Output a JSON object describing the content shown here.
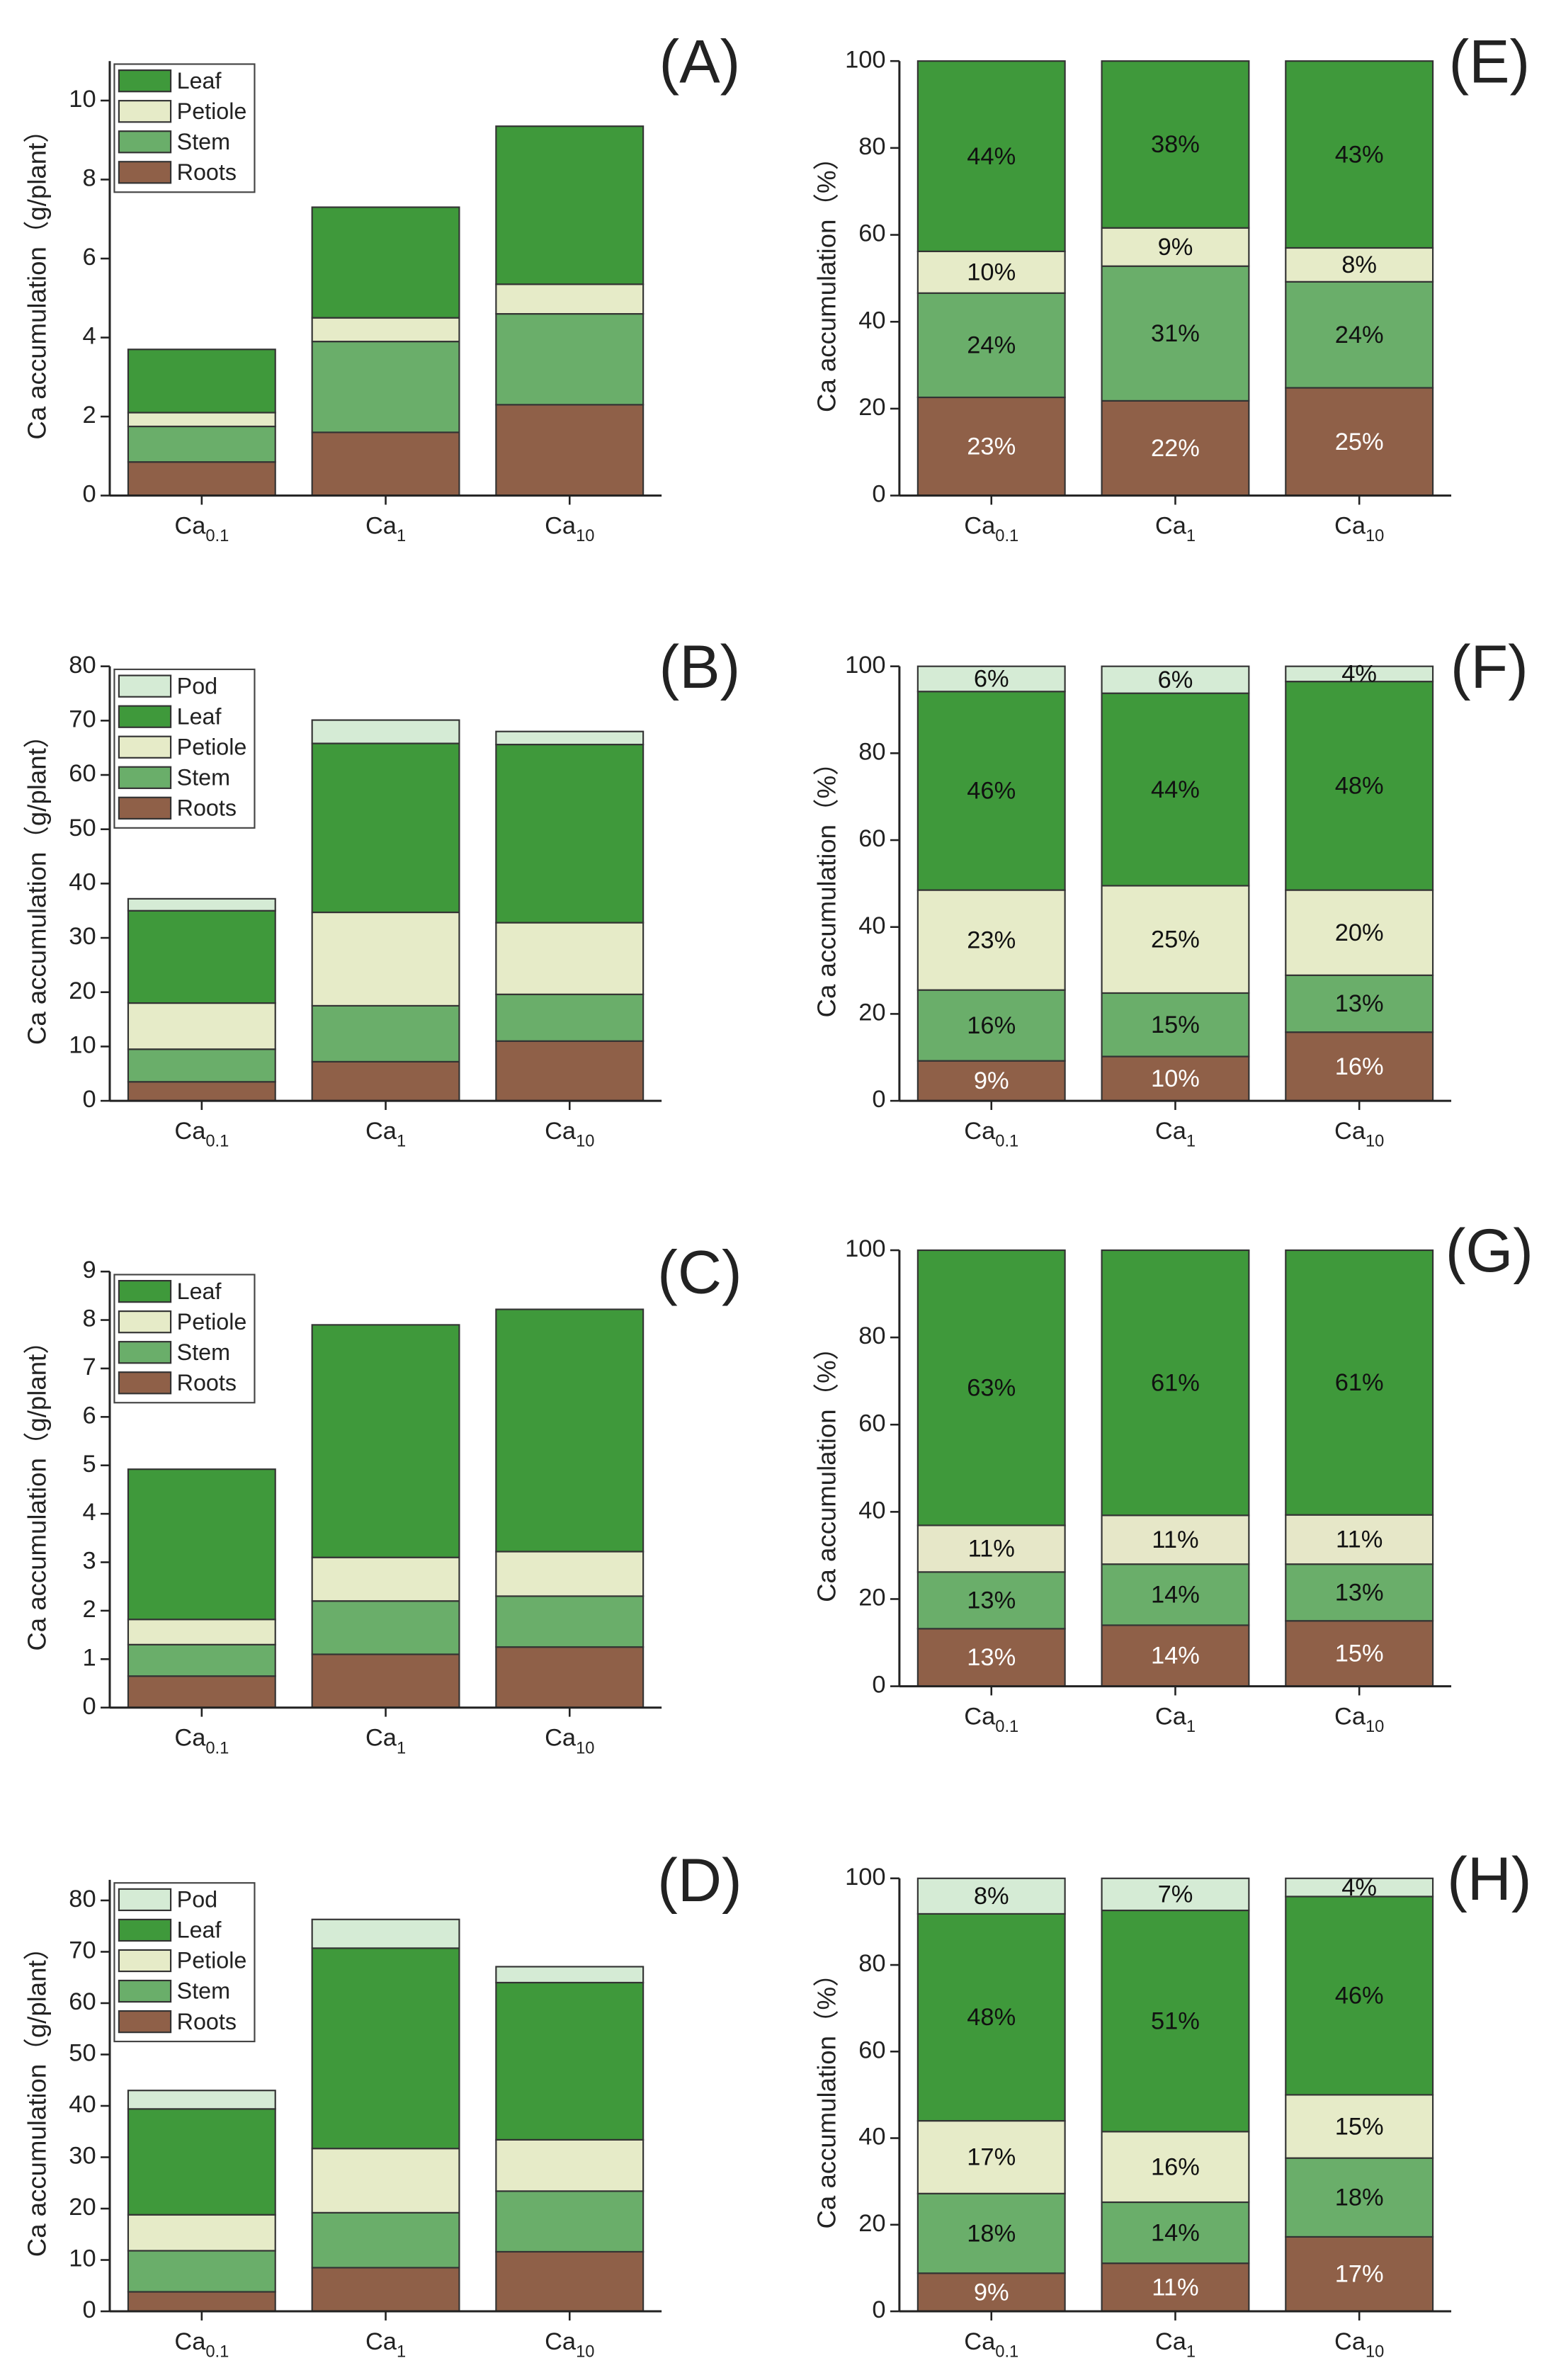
{
  "chart_data": [
    {
      "type": "bar",
      "stacked": true,
      "panel_label": "(A)",
      "y_label": "Ca accumulation（g/plant）",
      "categories": [
        "Ca0.1",
        "Ca1",
        "Ca10"
      ],
      "ylim": [
        0,
        11
      ],
      "yticks": [
        0,
        2,
        4,
        6,
        8,
        10
      ],
      "legend": "upper left",
      "series": [
        {
          "name": "Roots",
          "color": "#8f6048",
          "values": [
            0.85,
            1.6,
            2.3
          ]
        },
        {
          "name": "Stem",
          "color": "#6aae6a",
          "values": [
            0.9,
            2.3,
            2.3
          ]
        },
        {
          "name": "Petiole",
          "color": "#e6ebc8",
          "values": [
            0.35,
            0.6,
            0.75
          ]
        },
        {
          "name": "Leaf",
          "color": "#3f993b",
          "values": [
            1.6,
            2.8,
            4.0
          ]
        }
      ]
    },
    {
      "type": "bar",
      "stacked": true,
      "panel_label": "(E)",
      "y_label": "Ca accumulation（%）",
      "categories": [
        "Ca0.1",
        "Ca1",
        "Ca10"
      ],
      "ylim": [
        0,
        100
      ],
      "yticks": [
        0,
        20,
        40,
        60,
        80,
        100
      ],
      "series": [
        {
          "name": "Roots",
          "color": "#8f6048",
          "label_color": "#ffffff",
          "values": [
            22.6,
            21.8,
            24.8
          ],
          "value_labels": [
            "23%",
            "22%",
            "25%"
          ]
        },
        {
          "name": "Stem",
          "color": "#6aae6a",
          "label_color": "#111111",
          "values": [
            24.0,
            31.0,
            24.4
          ],
          "value_labels": [
            "24%",
            "31%",
            "24%"
          ]
        },
        {
          "name": "Petiole",
          "color": "#e6ebc8",
          "label_color": "#111111",
          "values": [
            9.6,
            8.8,
            7.8
          ],
          "value_labels": [
            "10%",
            "9%",
            "8%"
          ]
        },
        {
          "name": "Leaf",
          "color": "#3f993b",
          "label_color": "#111111",
          "values": [
            43.8,
            38.4,
            43.0
          ],
          "value_labels": [
            "44%",
            "38%",
            "43%"
          ]
        }
      ]
    },
    {
      "type": "bar",
      "stacked": true,
      "panel_label": "(B)",
      "y_label": "Ca accumulation（g/plant）",
      "categories": [
        "Ca0.1",
        "Ca1",
        "Ca10"
      ],
      "ylim": [
        0,
        80
      ],
      "yticks": [
        0,
        10,
        20,
        30,
        40,
        50,
        60,
        70,
        80
      ],
      "legend": "upper left",
      "series": [
        {
          "name": "Roots",
          "color": "#8f6048",
          "values": [
            3.5,
            7.2,
            11.0
          ]
        },
        {
          "name": "Stem",
          "color": "#6aae6a",
          "values": [
            6.0,
            10.3,
            8.6
          ]
        },
        {
          "name": "Petiole",
          "color": "#e6ebc8",
          "values": [
            8.5,
            17.2,
            13.2
          ]
        },
        {
          "name": "Leaf",
          "color": "#3f993b",
          "values": [
            17.0,
            31.1,
            32.8
          ]
        },
        {
          "name": "Pod",
          "color": "#d5ebd5",
          "values": [
            2.2,
            4.3,
            2.4
          ]
        }
      ]
    },
    {
      "type": "bar",
      "stacked": true,
      "panel_label": "(F)",
      "y_label": "Ca accumulation（%）",
      "categories": [
        "Ca0.1",
        "Ca1",
        "Ca10"
      ],
      "ylim": [
        0,
        100
      ],
      "yticks": [
        0,
        20,
        40,
        60,
        80,
        100
      ],
      "series": [
        {
          "name": "Roots",
          "color": "#8f6048",
          "label_color": "#ffffff",
          "values": [
            9.2,
            10.2,
            15.8
          ],
          "value_labels": [
            "9%",
            "10%",
            "16%"
          ]
        },
        {
          "name": "Stem",
          "color": "#6aae6a",
          "label_color": "#111111",
          "values": [
            16.3,
            14.6,
            13.1
          ],
          "value_labels": [
            "16%",
            "15%",
            "13%"
          ]
        },
        {
          "name": "Petiole",
          "color": "#e6ebc8",
          "label_color": "#111111",
          "values": [
            23.0,
            24.7,
            19.6
          ],
          "value_labels": [
            "23%",
            "25%",
            "20%"
          ]
        },
        {
          "name": "Leaf",
          "color": "#3f993b",
          "label_color": "#111111",
          "values": [
            45.7,
            44.3,
            48.0
          ],
          "value_labels": [
            "46%",
            "44%",
            "48%"
          ]
        },
        {
          "name": "Pod",
          "color": "#d5ebd5",
          "label_color": "#111111",
          "values": [
            5.8,
            6.2,
            3.5
          ],
          "value_labels": [
            "6%",
            "6%",
            "4%"
          ]
        }
      ]
    },
    {
      "type": "bar",
      "stacked": true,
      "panel_label": "(C)",
      "y_label": "Ca accumulation（g/plant）",
      "categories": [
        "Ca0.1",
        "Ca1",
        "Ca10"
      ],
      "ylim": [
        0,
        9
      ],
      "yticks": [
        0,
        1,
        2,
        3,
        4,
        5,
        6,
        7,
        8,
        9
      ],
      "legend": "upper left",
      "series": [
        {
          "name": "Roots",
          "color": "#8f6048",
          "values": [
            0.65,
            1.1,
            1.25
          ]
        },
        {
          "name": "Stem",
          "color": "#6aae6a",
          "values": [
            0.65,
            1.1,
            1.05
          ]
        },
        {
          "name": "Petiole",
          "color": "#e6ebc8",
          "values": [
            0.52,
            0.9,
            0.92
          ]
        },
        {
          "name": "Leaf",
          "color": "#3f993b",
          "values": [
            3.1,
            4.8,
            5.0
          ]
        }
      ]
    },
    {
      "type": "bar",
      "stacked": true,
      "panel_label": "(G)",
      "y_label": "Ca accumulation（%）",
      "categories": [
        "Ca0.1",
        "Ca1",
        "Ca10"
      ],
      "ylim": [
        0,
        100
      ],
      "yticks": [
        0,
        20,
        40,
        60,
        80,
        100
      ],
      "series": [
        {
          "name": "Roots",
          "color": "#8f6048",
          "label_color": "#ffffff",
          "values": [
            13.2,
            14.0,
            15.0
          ],
          "value_labels": [
            "13%",
            "14%",
            "15%"
          ]
        },
        {
          "name": "Stem",
          "color": "#6aae6a",
          "label_color": "#111111",
          "values": [
            13.0,
            14.0,
            13.0
          ],
          "value_labels": [
            "13%",
            "14%",
            "13%"
          ]
        },
        {
          "name": "Petiole",
          "color": "#e6e7c8",
          "label_color": "#111111",
          "values": [
            10.7,
            11.2,
            11.3
          ],
          "value_labels": [
            "11%",
            "11%",
            "11%"
          ]
        },
        {
          "name": "Leaf",
          "color": "#3f993b",
          "label_color": "#111111",
          "values": [
            63.1,
            60.8,
            60.7
          ],
          "value_labels": [
            "63%",
            "61%",
            "61%"
          ]
        }
      ]
    },
    {
      "type": "bar",
      "stacked": true,
      "panel_label": "(D)",
      "y_label": "Ca accumulation（g/plant）",
      "categories": [
        "Ca0.1",
        "Ca1",
        "Ca10"
      ],
      "ylim": [
        0,
        84
      ],
      "yticks": [
        0,
        10,
        20,
        30,
        40,
        50,
        60,
        70,
        80
      ],
      "legend": "upper left",
      "series": [
        {
          "name": "Roots",
          "color": "#8f6048",
          "values": [
            3.8,
            8.5,
            11.6
          ]
        },
        {
          "name": "Stem",
          "color": "#6aae6a",
          "values": [
            8.0,
            10.7,
            11.8
          ]
        },
        {
          "name": "Petiole",
          "color": "#e6ebc8",
          "values": [
            7.0,
            12.5,
            10.0
          ]
        },
        {
          "name": "Leaf",
          "color": "#3f993b",
          "values": [
            20.6,
            39.0,
            30.6
          ]
        },
        {
          "name": "Pod",
          "color": "#d5ebd5",
          "values": [
            3.6,
            5.6,
            3.1
          ]
        }
      ]
    },
    {
      "type": "bar",
      "stacked": true,
      "panel_label": "(H)",
      "y_label": "Ca accumulation（%）",
      "categories": [
        "Ca0.1",
        "Ca1",
        "Ca10"
      ],
      "ylim": [
        0,
        100
      ],
      "yticks": [
        0,
        20,
        40,
        60,
        80,
        100
      ],
      "series": [
        {
          "name": "Roots",
          "color": "#8f6048",
          "label_color": "#ffffff",
          "values": [
            8.8,
            11.1,
            17.2
          ],
          "value_labels": [
            "9%",
            "11%",
            "17%"
          ]
        },
        {
          "name": "Stem",
          "color": "#6aae6a",
          "label_color": "#111111",
          "values": [
            18.4,
            14.1,
            18.2
          ],
          "value_labels": [
            "18%",
            "14%",
            "18%"
          ]
        },
        {
          "name": "Petiole",
          "color": "#e6ebc8",
          "label_color": "#111111",
          "values": [
            16.8,
            16.3,
            14.6
          ],
          "value_labels": [
            "17%",
            "16%",
            "15%"
          ]
        },
        {
          "name": "Leaf",
          "color": "#3f993b",
          "label_color": "#111111",
          "values": [
            47.8,
            51.1,
            45.8
          ],
          "value_labels": [
            "48%",
            "51%",
            "46%"
          ]
        },
        {
          "name": "Pod",
          "color": "#d5ebd5",
          "label_color": "#111111",
          "values": [
            8.2,
            7.4,
            4.2
          ],
          "value_labels": [
            "8%",
            "7%",
            "4%"
          ]
        }
      ]
    }
  ]
}
